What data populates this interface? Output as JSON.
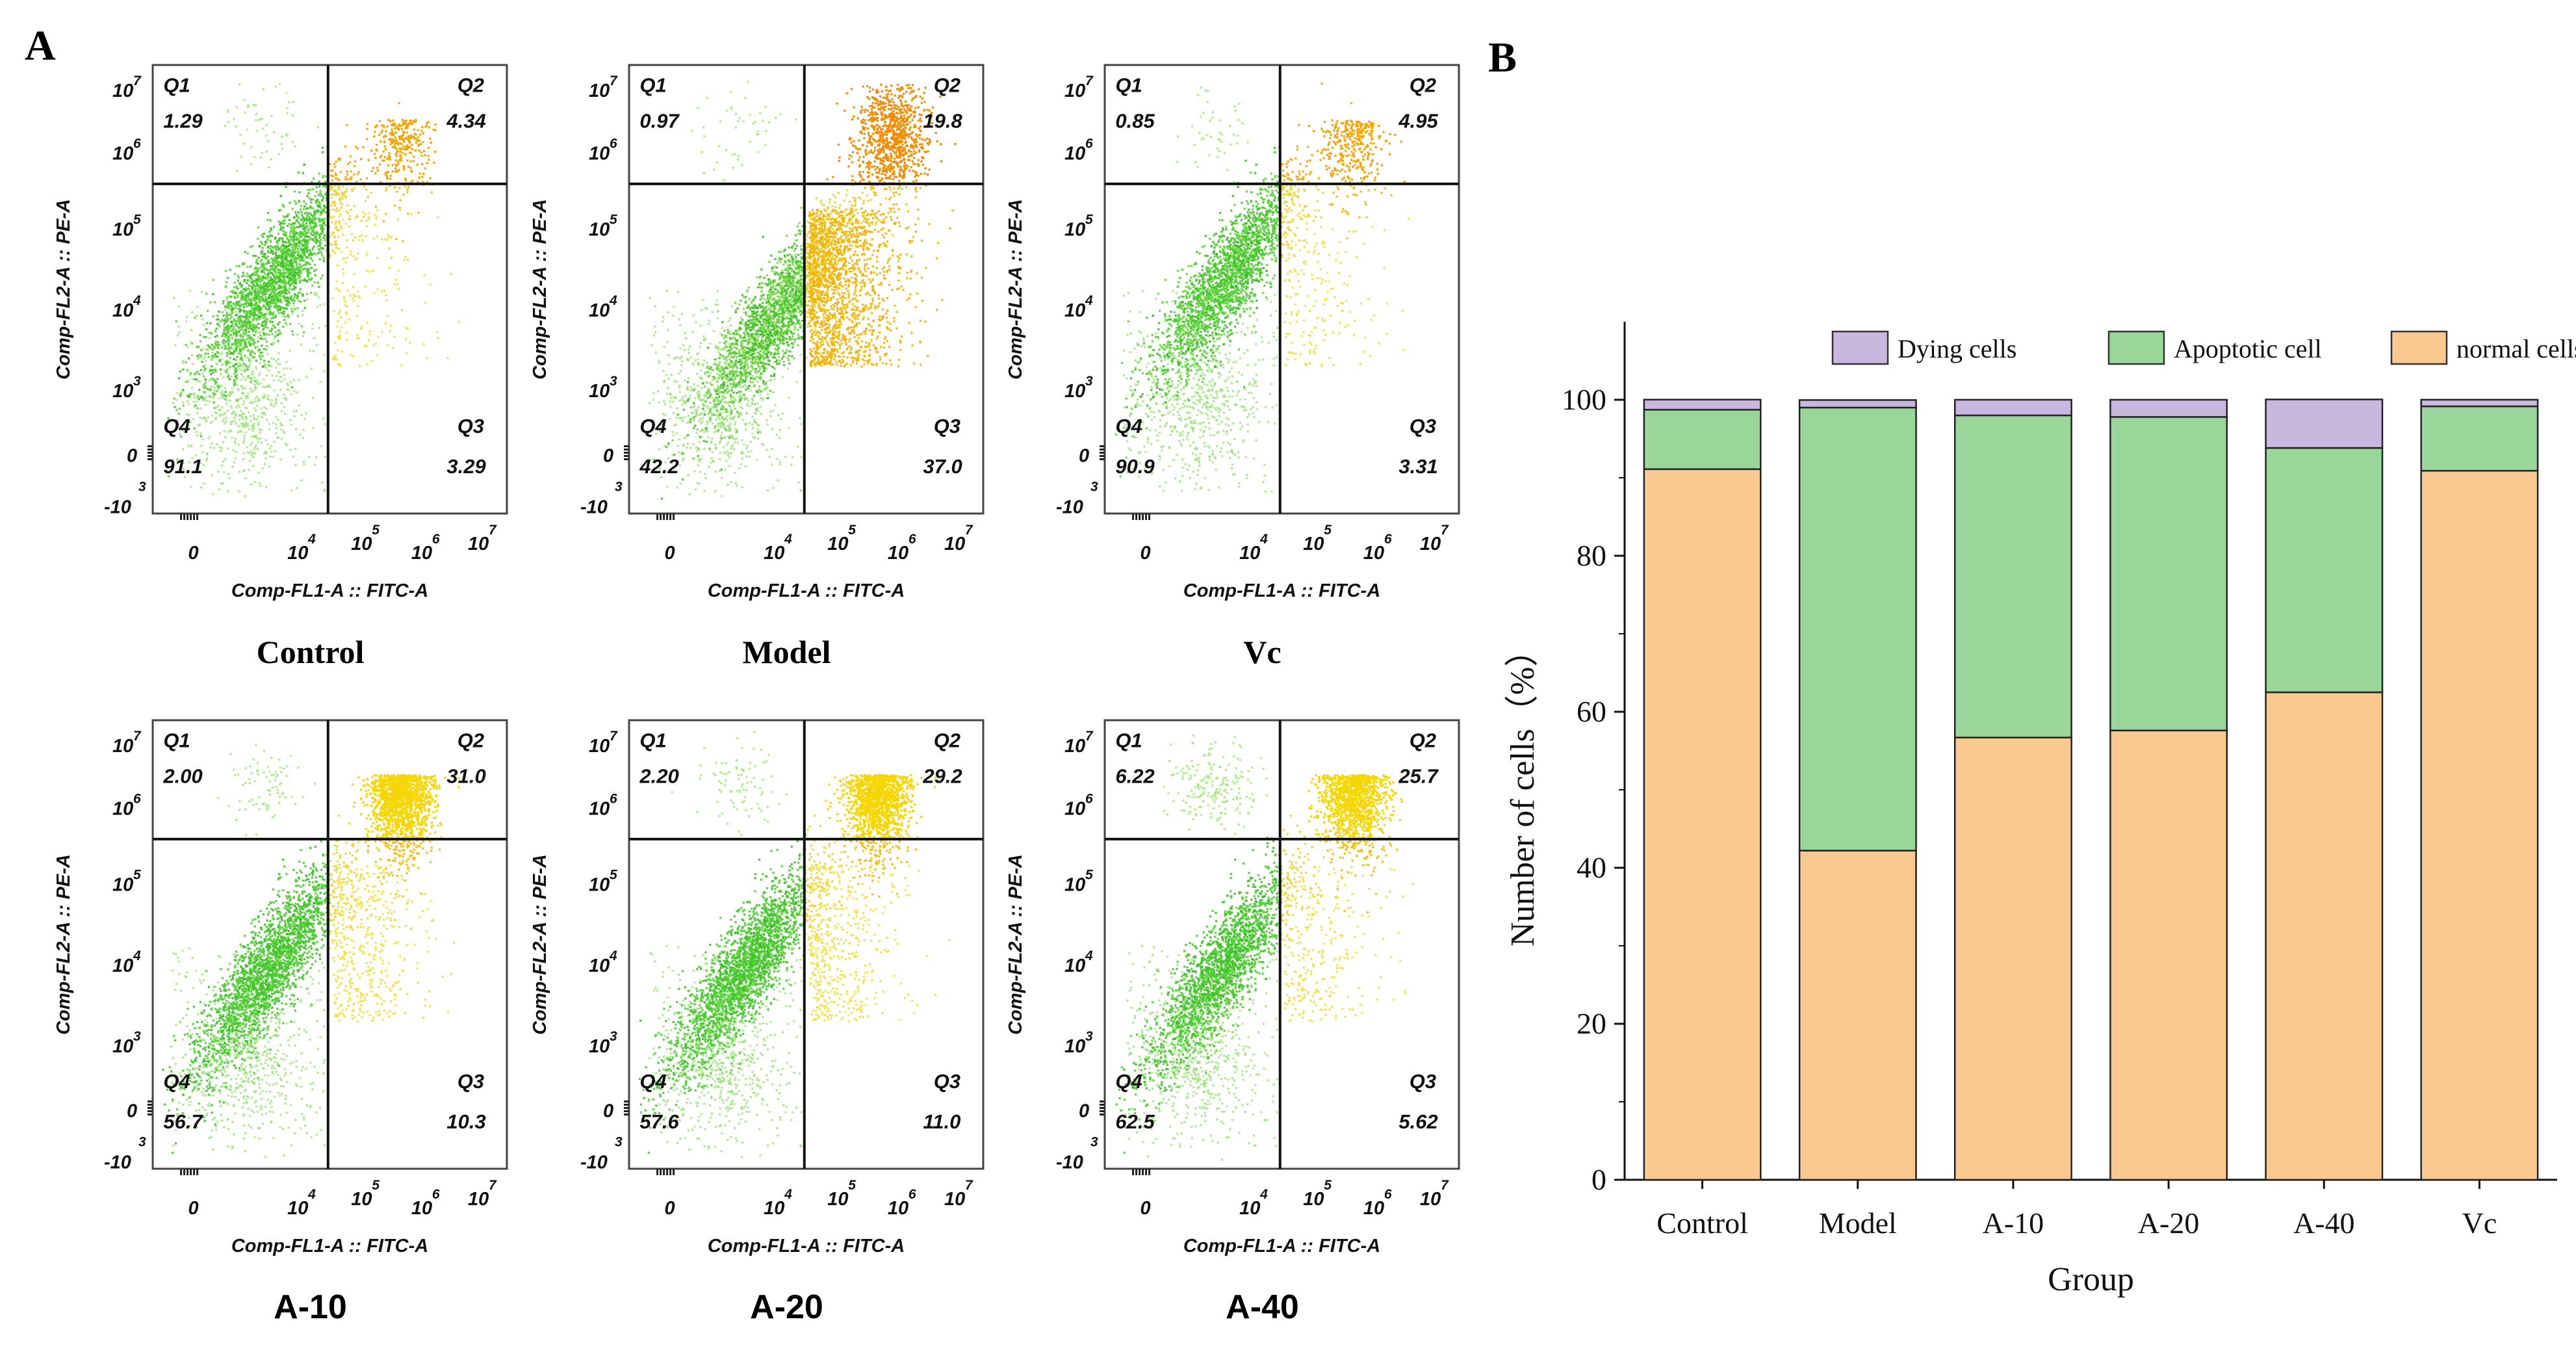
{
  "panel_a_label": "A",
  "panel_b_label": "B",
  "chart_data": [
    {
      "type": "scatter",
      "subtype": "flow-cytometry-quadrant",
      "title": "Control",
      "xlabel": "Comp-FL1-A :: FITC-A",
      "ylabel": "Comp-FL2-A :: PE-A",
      "quadrants": {
        "Q1": "1.29",
        "Q2": "4.34",
        "Q3": "3.29",
        "Q4": "91.1"
      },
      "colors": {
        "main": "#5fd63a",
        "q2": "#f7a300"
      }
    },
    {
      "type": "scatter",
      "subtype": "flow-cytometry-quadrant",
      "title": "Model",
      "xlabel": "Comp-FL1-A :: FITC-A",
      "ylabel": "Comp-FL2-A :: PE-A",
      "quadrants": {
        "Q1": "0.97",
        "Q2": "19.8",
        "Q3": "37.0",
        "Q4": "42.2"
      },
      "colors": {
        "main": "#7fd84a",
        "q2": "#f28c00"
      }
    },
    {
      "type": "scatter",
      "subtype": "flow-cytometry-quadrant",
      "title": "Vc",
      "xlabel": "Comp-FL1-A :: FITC-A",
      "ylabel": "Comp-FL2-A :: PE-A",
      "quadrants": {
        "Q1": "0.85",
        "Q2": "4.95",
        "Q3": "3.31",
        "Q4": "90.9"
      },
      "colors": {
        "main": "#5fd63a",
        "q2": "#f7a300"
      }
    },
    {
      "type": "scatter",
      "subtype": "flow-cytometry-quadrant",
      "title": "A-10",
      "xlabel": "Comp-FL1-A :: FITC-A",
      "ylabel": "Comp-FL2-A :: PE-A",
      "quadrants": {
        "Q1": "2.00",
        "Q2": "31.0",
        "Q3": "10.3",
        "Q4": "56.7"
      },
      "colors": {
        "main": "#4ccf2f",
        "q2": "#f6d600"
      }
    },
    {
      "type": "scatter",
      "subtype": "flow-cytometry-quadrant",
      "title": "A-20",
      "xlabel": "Comp-FL1-A :: FITC-A",
      "ylabel": "Comp-FL2-A :: PE-A",
      "quadrants": {
        "Q1": "2.20",
        "Q2": "29.2",
        "Q3": "11.0",
        "Q4": "57.6"
      },
      "colors": {
        "main": "#4ccf2f",
        "q2": "#f6d600"
      }
    },
    {
      "type": "scatter",
      "subtype": "flow-cytometry-quadrant",
      "title": "A-40",
      "xlabel": "Comp-FL1-A :: FITC-A",
      "ylabel": "Comp-FL2-A :: PE-A",
      "quadrants": {
        "Q1": "6.22",
        "Q2": "25.7",
        "Q3": "5.62",
        "Q4": "62.5"
      },
      "colors": {
        "main": "#4ccf2f",
        "q2": "#f6d600"
      }
    },
    {
      "type": "bar",
      "stacked": true,
      "xlabel": "Group",
      "ylabel": "Number of cells（%）",
      "ylim": [
        0,
        110
      ],
      "yticks": [
        0,
        20,
        40,
        60,
        80,
        100
      ],
      "categories": [
        "Control",
        "Model",
        "A-10",
        "A-20",
        "A-40",
        "Vc"
      ],
      "series": [
        {
          "name": "normal cells",
          "color": "#fac891",
          "values": [
            91.1,
            42.2,
            56.7,
            57.6,
            62.5,
            90.9
          ]
        },
        {
          "name": "Apoptotic cell",
          "color": "#9ad59a",
          "values": [
            7.63,
            56.8,
            41.3,
            40.2,
            31.32,
            8.26
          ]
        },
        {
          "name": "Dying cells",
          "color": "#c8b7df",
          "values": [
            1.29,
            0.97,
            2.0,
            2.2,
            6.22,
            0.85
          ]
        }
      ],
      "legend_order": [
        "Dying cells",
        "Apoptotic cell",
        "normal cells"
      ],
      "legend_position": "top"
    }
  ]
}
